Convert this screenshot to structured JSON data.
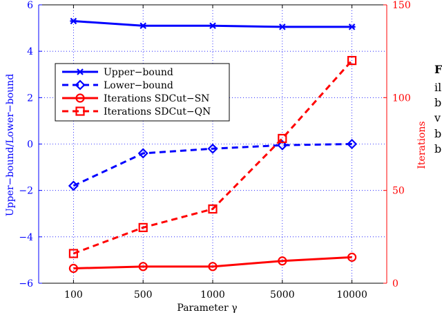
{
  "chart_data": {
    "type": "line",
    "xlabel": "Parameter γ",
    "categories": [
      "100",
      "500",
      "1000",
      "5000",
      "10000"
    ],
    "left_axis": {
      "label": "Upper−bound/Lower−bound",
      "color": "#0000ff",
      "ylim": [
        -6,
        6
      ],
      "ticks": [
        "−6",
        "−4",
        "−2",
        "0",
        "2",
        "4",
        "6"
      ]
    },
    "right_axis": {
      "label": "Iterations",
      "color": "#ff0000",
      "ylim": [
        0,
        150
      ],
      "ticks": [
        "0",
        "50",
        "100",
        "150"
      ]
    },
    "grid": true,
    "legend_position": "upper-left",
    "series": [
      {
        "name": "Upper−bound",
        "axis": "left",
        "color": "#0000ff",
        "line": "solid",
        "marker": "x",
        "values": [
          5.3,
          5.1,
          5.1,
          5.05,
          5.05
        ]
      },
      {
        "name": "Lower−bound",
        "axis": "left",
        "color": "#0000ff",
        "line": "dashed",
        "marker": "diamond",
        "values": [
          -1.8,
          -0.4,
          -0.2,
          -0.05,
          0.0
        ]
      },
      {
        "name": "Iterations SDCut−SN",
        "axis": "right",
        "color": "#ff0000",
        "line": "solid",
        "marker": "circle",
        "values": [
          8,
          9,
          9,
          12,
          14
        ]
      },
      {
        "name": "Iterations SDCut−QN",
        "axis": "right",
        "color": "#ff0000",
        "line": "dashed",
        "marker": "square",
        "values": [
          16,
          30,
          40,
          78,
          120
        ]
      }
    ]
  },
  "side_text": [
    "F",
    "il",
    "b",
    "v",
    "b",
    "b"
  ]
}
